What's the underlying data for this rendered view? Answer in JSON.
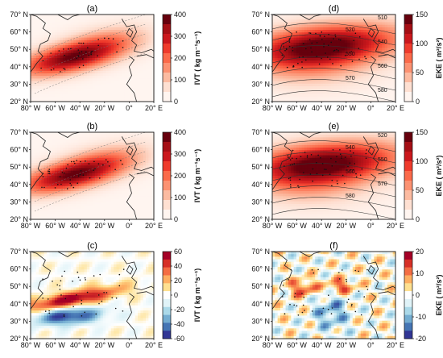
{
  "figure": {
    "lat_labels": [
      "70° N",
      "60° N",
      "50° N",
      "40° N",
      "30° N",
      "20° N"
    ],
    "lon_labels": [
      "80° W",
      "60° W",
      "40° W",
      "20° W",
      "0°",
      "20° E"
    ],
    "panels": [
      {
        "id": "a",
        "label": "(a)",
        "field": "ivt_mean",
        "colorbar": {
          "label": "IVT ( kg m⁻¹s⁻¹)",
          "ticks": [
            "400",
            "300",
            "200",
            "100",
            "0"
          ],
          "colors": [
            "#67000d",
            "#a50f15",
            "#cb181d",
            "#ef3b2c",
            "#fb6a4a",
            "#fc9272",
            "#fcbba1",
            "#fee0d2",
            "#fff5f0"
          ]
        }
      },
      {
        "id": "d",
        "label": "(d)",
        "field": "eke_mean",
        "colorbar": {
          "label": "EKE ( m²/s²)",
          "ticks": [
            "150",
            "100",
            "50",
            "0"
          ],
          "colors": [
            "#67000d",
            "#a50f15",
            "#cb181d",
            "#ef3b2c",
            "#fb6a4a",
            "#fc9272",
            "#fcbba1",
            "#fee0d2",
            "#fff5f0"
          ]
        },
        "contour_labels": [
          "510",
          "520",
          "540",
          "550",
          "560",
          "570",
          "580"
        ]
      },
      {
        "id": "b",
        "label": "(b)",
        "field": "ivt_mean",
        "colorbar": {
          "label": "IVT ( kg m⁻¹s⁻¹)",
          "ticks": [
            "400",
            "300",
            "200",
            "100",
            "0"
          ],
          "colors": [
            "#67000d",
            "#a50f15",
            "#cb181d",
            "#ef3b2c",
            "#fb6a4a",
            "#fc9272",
            "#fcbba1",
            "#fee0d2",
            "#fff5f0"
          ]
        }
      },
      {
        "id": "e",
        "label": "(e)",
        "field": "eke_mean",
        "colorbar": {
          "label": "EKE ( m²/s²)",
          "ticks": [
            "150",
            "100",
            "50",
            "0"
          ],
          "colors": [
            "#67000d",
            "#a50f15",
            "#cb181d",
            "#ef3b2c",
            "#fb6a4a",
            "#fc9272",
            "#fcbba1",
            "#fee0d2",
            "#fff5f0"
          ]
        },
        "contour_labels": [
          "520",
          "540",
          "550",
          "560",
          "570",
          "580"
        ]
      },
      {
        "id": "c",
        "label": "(c)",
        "field": "ivt_diff",
        "colorbar": {
          "label": "IVT ( kg m⁻¹s⁻¹)",
          "ticks": [
            "60",
            "40",
            "20",
            "0",
            "-20",
            "-40",
            "-60"
          ],
          "colors": [
            "#a50026",
            "#d73027",
            "#f46d43",
            "#fdae61",
            "#fee090",
            "#ffffff",
            "#e0f3f8",
            "#abd9e9",
            "#74add1",
            "#4575b4",
            "#313695"
          ]
        }
      },
      {
        "id": "f",
        "label": "(f)",
        "field": "eke_diff",
        "colorbar": {
          "label": "EKE ( m²/s²)",
          "ticks": [
            "20",
            "10",
            "0",
            "-10",
            "-20"
          ],
          "colors": [
            "#a50026",
            "#d73027",
            "#f46d43",
            "#fdae61",
            "#fee090",
            "#ffffff",
            "#e0f3f8",
            "#abd9e9",
            "#74add1",
            "#4575b4",
            "#313695"
          ]
        }
      }
    ]
  }
}
